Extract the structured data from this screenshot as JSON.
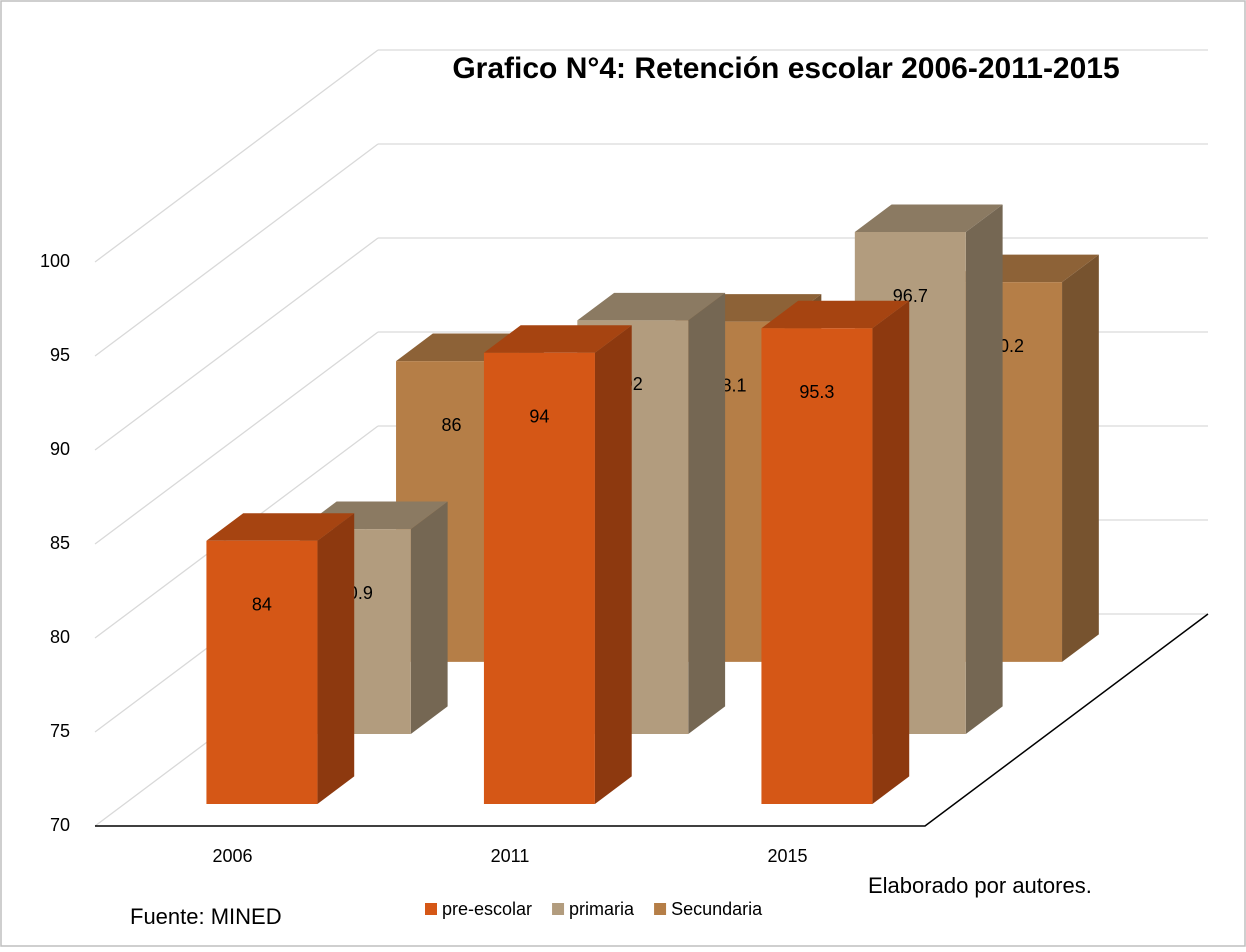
{
  "chart_data": {
    "type": "bar3d",
    "title": "Grafico N°4: Retención escolar 2006-2011-2015",
    "categories": [
      "2006",
      "2011",
      "2015"
    ],
    "series": [
      {
        "name": "pre-escolar",
        "color": "#d55716",
        "values": [
          84,
          94,
          95.3
        ]
      },
      {
        "name": "primaria",
        "color": "#b29c7e",
        "values": [
          80.9,
          92,
          96.7
        ]
      },
      {
        "name": "Secundaria",
        "color": "#b57e47",
        "values": [
          86,
          88.1,
          90.2
        ]
      }
    ],
    "ylim": [
      70,
      100
    ],
    "yticks": [
      70,
      75,
      80,
      85,
      90,
      95,
      100
    ],
    "grid": true,
    "legend": "bottom",
    "annotations": [
      "Elaborado por  autores.",
      "Fuente: MINED"
    ]
  }
}
